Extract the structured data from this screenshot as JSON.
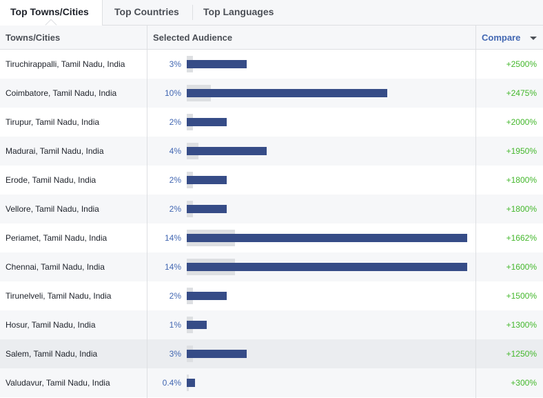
{
  "tabs": [
    {
      "label": "Top Towns/Cities",
      "active": true
    },
    {
      "label": "Top Countries",
      "active": false
    },
    {
      "label": "Top Languages",
      "active": false
    }
  ],
  "columns": {
    "city": "Towns/Cities",
    "audience": "Selected Audience",
    "compare": "Compare"
  },
  "colors": {
    "bar": "#364c87",
    "baseline": "#dddfe2",
    "percent_text": "#4267b2",
    "compare_text": "#42b72a",
    "highlight_row": "#ebedf0"
  },
  "max_scale_percent": 14,
  "rows": [
    {
      "city": "Tiruchirappalli, Tamil Nadu, India",
      "pct_label": "3%",
      "pct": 3,
      "baseline": 0.1,
      "compare": "+2500%"
    },
    {
      "city": "Coimbatore, Tamil Nadu, India",
      "pct_label": "10%",
      "pct": 10,
      "baseline": 0.4,
      "compare": "+2475%"
    },
    {
      "city": "Tirupur, Tamil Nadu, India",
      "pct_label": "2%",
      "pct": 2,
      "baseline": 0.1,
      "compare": "+2000%"
    },
    {
      "city": "Madurai, Tamil Nadu, India",
      "pct_label": "4%",
      "pct": 4,
      "baseline": 0.2,
      "compare": "+1950%"
    },
    {
      "city": "Erode, Tamil Nadu, India",
      "pct_label": "2%",
      "pct": 2,
      "baseline": 0.1,
      "compare": "+1800%"
    },
    {
      "city": "Vellore, Tamil Nadu, India",
      "pct_label": "2%",
      "pct": 2,
      "baseline": 0.1,
      "compare": "+1800%"
    },
    {
      "city": "Periamet, Tamil Nadu, India",
      "pct_label": "14%",
      "pct": 14,
      "baseline": 0.8,
      "compare": "+1662%"
    },
    {
      "city": "Chennai, Tamil Nadu, India",
      "pct_label": "14%",
      "pct": 14,
      "baseline": 0.8,
      "compare": "+1600%"
    },
    {
      "city": "Tirunelveli, Tamil Nadu, India",
      "pct_label": "2%",
      "pct": 2,
      "baseline": 0.1,
      "compare": "+1500%"
    },
    {
      "city": "Hosur, Tamil Nadu, India",
      "pct_label": "1%",
      "pct": 1,
      "baseline": 0.1,
      "compare": "+1300%"
    },
    {
      "city": "Salem, Tamil Nadu, India",
      "pct_label": "3%",
      "pct": 3,
      "baseline": 0.1,
      "compare": "+1250%",
      "highlighted": true
    },
    {
      "city": "Valudavur, Tamil Nadu, India",
      "pct_label": "0.4%",
      "pct": 0.4,
      "baseline": 0.0,
      "compare": "+300%"
    }
  ]
}
